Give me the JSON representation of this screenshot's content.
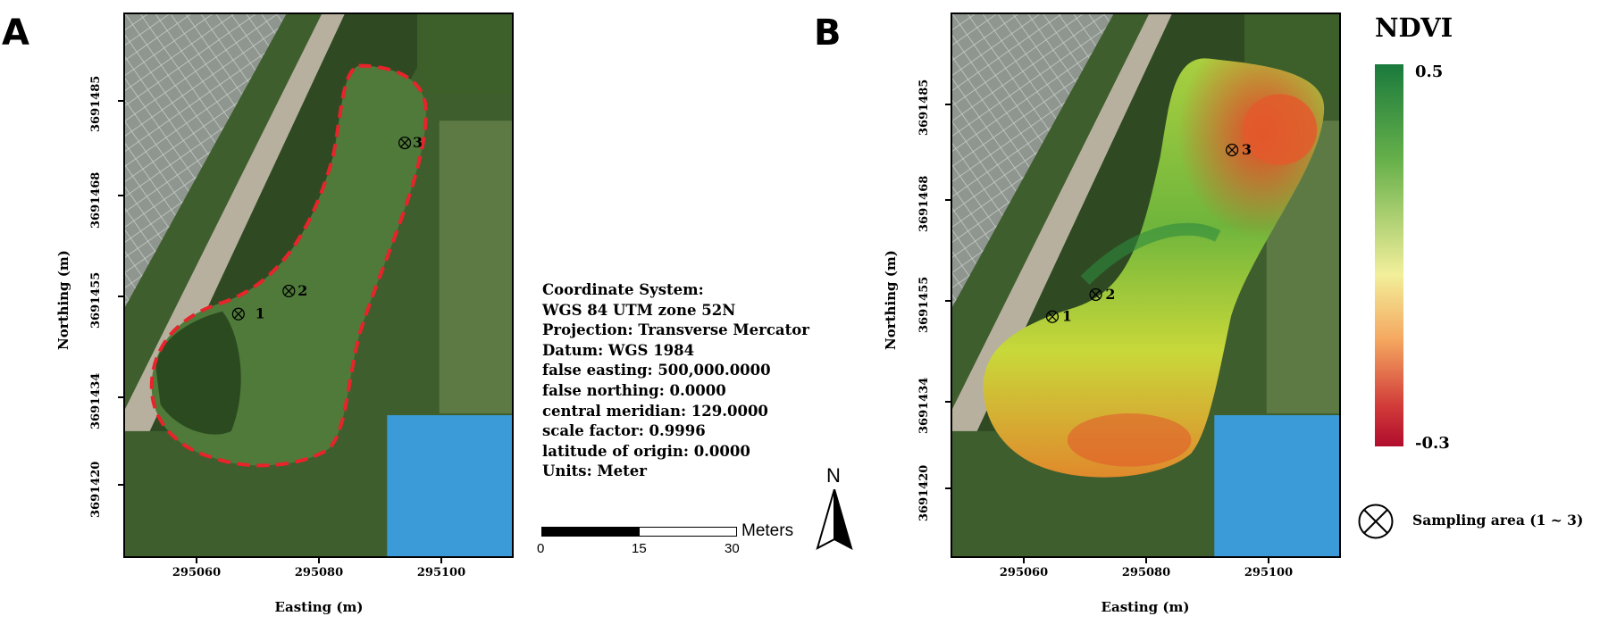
{
  "panels": [
    {
      "letter": "A",
      "y_ticks": [
        "3691485",
        "3691468",
        "3691455",
        "3691434",
        "3691420"
      ],
      "x_ticks": [
        "295060",
        "295080",
        "295100"
      ],
      "x_title": "Easting (m)",
      "y_title": "Northing (m)",
      "sampling_points": [
        "1",
        "2",
        "3"
      ]
    },
    {
      "letter": "B",
      "y_ticks": [
        "3691485",
        "3691468",
        "3691455",
        "3691434",
        "3691420"
      ],
      "x_ticks": [
        "295060",
        "295080",
        "295100"
      ],
      "x_title": "Easting (m)",
      "y_title": "Northing (m)",
      "sampling_points": [
        "1",
        "2",
        "3"
      ]
    }
  ],
  "coordinate_info": [
    "Coordinate System:",
    "WGS 84 UTM zone 52N",
    "Projection: Transverse Mercator",
    "Datum: WGS 1984",
    "false easting: 500,000.0000",
    "false northing: 0.0000",
    "central meridian: 129.0000",
    "scale factor: 0.9996",
    "latitude of origin: 0.0000",
    "Units: Meter"
  ],
  "scalebar": {
    "labels": [
      "0",
      "15",
      "30"
    ],
    "unit": "Meters"
  },
  "north_arrow": {
    "label": "N"
  },
  "ndvi_legend": {
    "title": "NDVI",
    "max_label": "0.5",
    "min_label": "-0.3",
    "colors": [
      "#1a7a3c",
      "#f2ef9a",
      "#b00d2e"
    ]
  },
  "sampling_legend": {
    "text": "Sampling area (1 ~ 3)"
  },
  "colors": {
    "boundary": "#e8232a",
    "vegetation": "#4f7a3a",
    "roof": "#3a9bd8"
  }
}
